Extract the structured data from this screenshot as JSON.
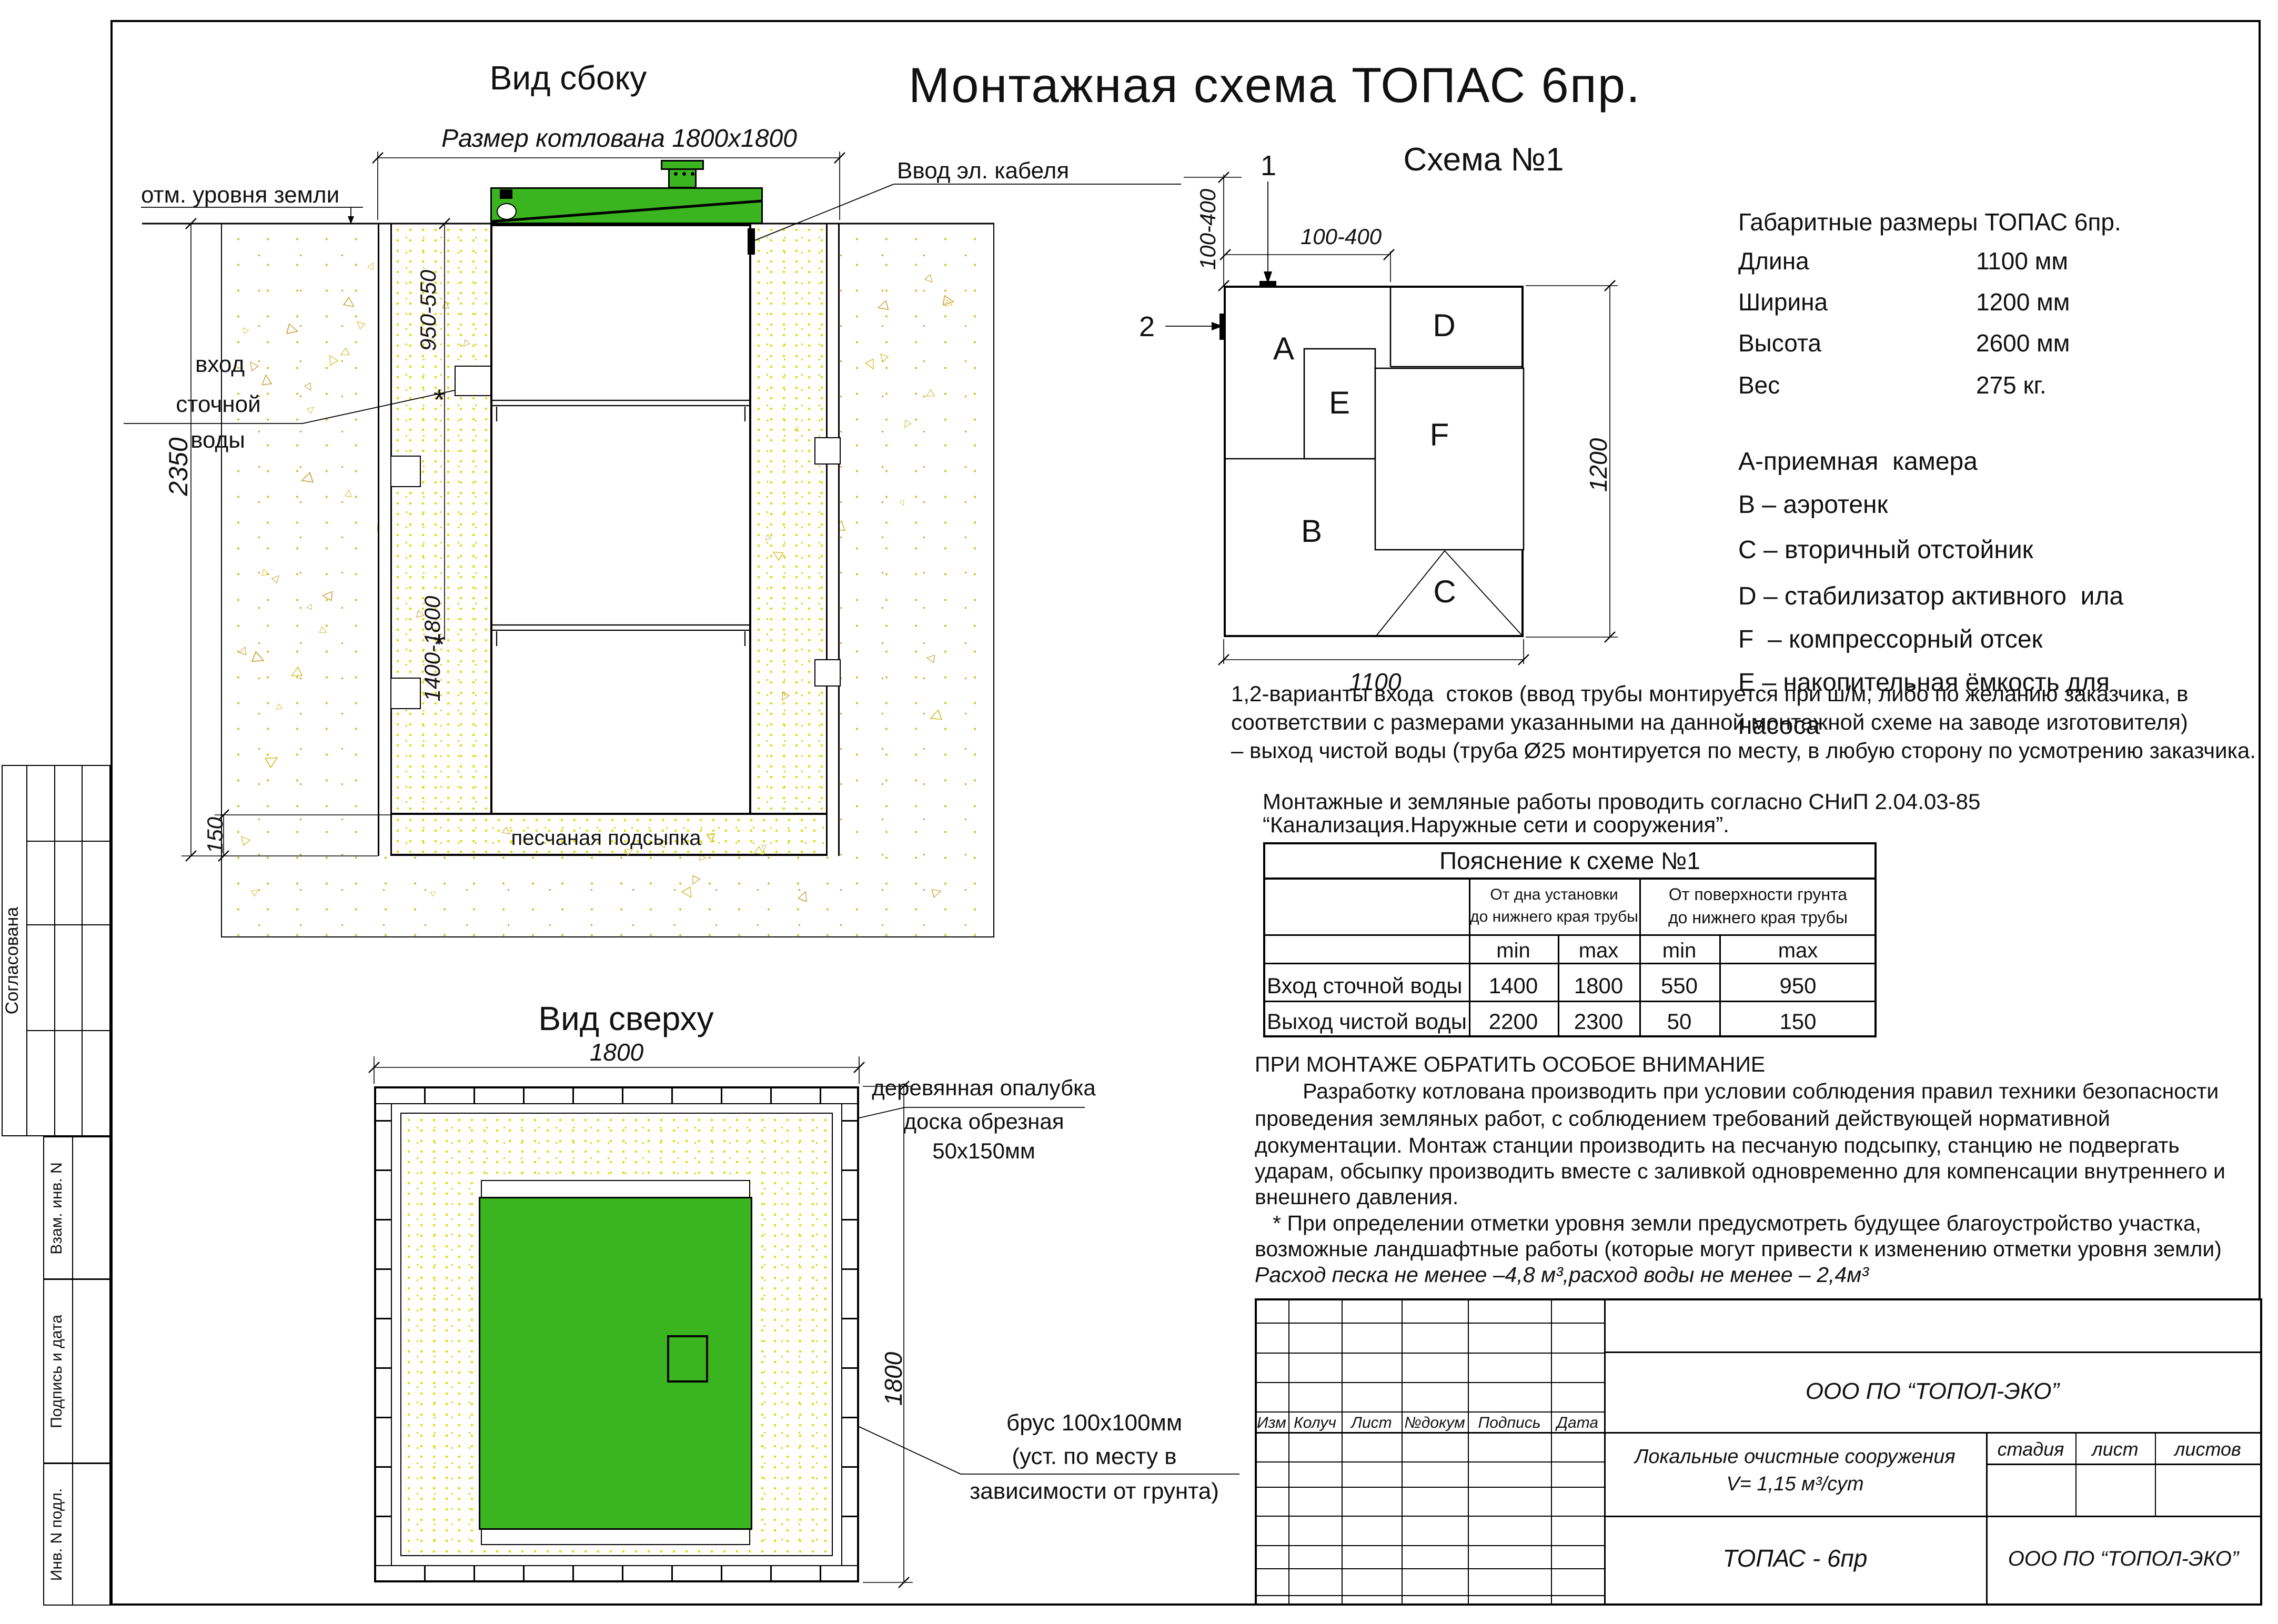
{
  "colors": {
    "tank_green": "#3ab520",
    "sand_dot": "#e3da00",
    "earth_dot": "#c9941c"
  },
  "hatch": {
    "glyph": "△"
  },
  "titles": {
    "main": "Монтажная схема ТОПАС 6пр.",
    "scheme": "Схема №1",
    "side_view": "Вид сбоку",
    "top_view": "Вид сверху"
  },
  "side_view": {
    "excavation": "Размер котлована 1800х1800",
    "ground_mark": "отм. уровня земли",
    "inlet": [
      "вход",
      "сточной",
      "воды"
    ],
    "cable": "Ввод эл. кабеля",
    "bedding": "песчаная подсыпка",
    "dim_depth": "2350",
    "dim_inlet": "950-550",
    "dim_outlet": "1400-1800",
    "dim_bed": "150",
    "asterisk": "*"
  },
  "top_view": {
    "dim_w": "1800",
    "dim_h": "1800",
    "formwork": [
      "деревянная опалубка",
      "доска обрезная",
      "50х150мм"
    ],
    "beam": [
      "брус 100х100мм",
      "(уст. по месту в",
      "зависимости от грунта)"
    ]
  },
  "schema": {
    "marker1": "1",
    "marker2": "2",
    "dim_top": "100-400",
    "dim_left": "100-400",
    "dim_w": "1100",
    "dim_h": "1200",
    "comp": {
      "a": "A",
      "b": "B",
      "c": "C",
      "d": "D",
      "e": "E",
      "f": "F"
    }
  },
  "specs": {
    "title": "Габаритные размеры ТОПАС 6пр.",
    "rows": [
      {
        "label": "Длина",
        "value": "1100 мм"
      },
      {
        "label": "Ширина",
        "value": "1200 мм"
      },
      {
        "label": "Высота",
        "value": "2600 мм"
      },
      {
        "label": "Вес",
        "value": "275 кг."
      }
    ]
  },
  "legend": [
    "А-приемная  камера",
    "В – аэротенк",
    "С – вторичный отстойник",
    "D – стабилизатор активного  ила",
    "F  – компрессорный отсек",
    "Е – накопительная ёмкость для",
    "насоса"
  ],
  "notes_variants": [
    "1,2-варианты входа  стоков (ввод трубы монтируется при ш/м, либо по желанию заказчика, в",
    "соответствии с размерами указанными на данной монтажной схеме на заводе изготовителя)",
    "– выход чистой воды (труба Ø25 монтируется по месту, в любую сторону по усмотрению заказчика."
  ],
  "notes_snip": [
    "Монтажные и земляные работы проводить согласно СНиП 2.04.03-85",
    "“Канализация.Наружные сети и сооружения”."
  ],
  "table": {
    "title": "Пояснение к схеме №1",
    "group1": [
      "От дна установки",
      "до нижнего края трубы"
    ],
    "group2": [
      "От поверхности грунта",
      "до нижнего края трубы"
    ],
    "minmax": [
      "min",
      "max",
      "min",
      "max"
    ],
    "rows": [
      {
        "label": "Вход сточной воды",
        "values": [
          "1400",
          "1800",
          "550",
          "950"
        ]
      },
      {
        "label": "Выход чистой воды",
        "values": [
          "2200",
          "2300",
          "50",
          "150"
        ]
      }
    ]
  },
  "attention": [
    "ПРИ МОНТАЖЕ ОБРАТИТЬ ОСОБОЕ ВНИМАНИЕ",
    "        Разработку котлована производить при условии соблюдения правил техники безопасности",
    "проведения земляных работ, с соблюдением требований действующей нормативной",
    "документации. Монтаж станции производить на песчаную подсыпку, станцию не подвергать",
    "ударам, обсыпку производить вместе с заливкой одновременно для компенсации внутреннего и",
    "внешнего давления.",
    "   * При определении отметки уровня земли предусмотреть будущее благоустройство участка,",
    "возможные ландшафтные работы (которые могут привести к изменению отметки уровня земли)",
    "Расход песка не менее –4,8 м³,расход воды не менее – 2,4м³"
  ],
  "stamp": {
    "columns": [
      "Изм",
      "Колуч",
      "Лист",
      "№докум",
      "Подпись",
      "Дата"
    ],
    "company": "ООО ПО “ТОПОЛ-ЭКО”",
    "doc_line1": "Локальные очистные сооружения",
    "doc_line2": "V= 1,15 м³/сут",
    "stage_headers": [
      "стадия",
      "лист",
      "листов"
    ],
    "product": "ТОПАС - 6пр",
    "org": "ООО ПО “ТОПОЛ-ЭКО”"
  },
  "margin_stamp": {
    "approved": "Согласована",
    "cells": [
      "Взам. инв. N",
      "Подпись и дата",
      "Инв. N подл."
    ]
  }
}
